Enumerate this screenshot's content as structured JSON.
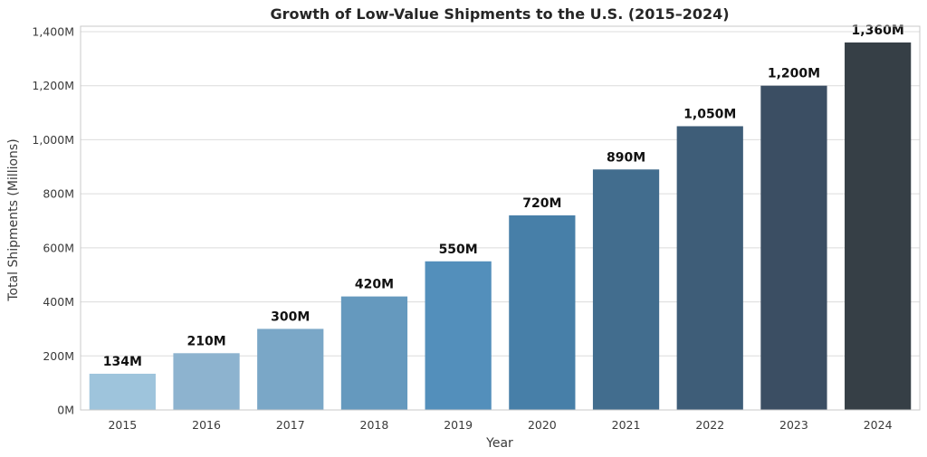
{
  "chart_data": {
    "type": "bar",
    "title": "Growth of Low-Value Shipments to the U.S. (2015–2024)",
    "xlabel": "Year",
    "ylabel": "Total Shipments (Millions)",
    "categories": [
      "2015",
      "2016",
      "2017",
      "2018",
      "2019",
      "2020",
      "2021",
      "2022",
      "2023",
      "2024"
    ],
    "values": [
      134,
      210,
      300,
      420,
      550,
      720,
      890,
      1050,
      1200,
      1360
    ],
    "value_labels": [
      "134M",
      "210M",
      "300M",
      "420M",
      "550M",
      "720M",
      "890M",
      "1,050M",
      "1,200M",
      "1,360M"
    ],
    "ylim": [
      0,
      1420
    ],
    "yticks": [
      0,
      200,
      400,
      600,
      800,
      1000,
      1200,
      1400
    ],
    "ytick_labels": [
      "0M",
      "200M",
      "400M",
      "600M",
      "800M",
      "1,000M",
      "1,200M",
      "1,400M"
    ],
    "grid": true,
    "colors": [
      "#9ec4dc",
      "#8db3cf",
      "#7aa7c7",
      "#6599be",
      "#538fbb",
      "#477fa8",
      "#426d8e",
      "#3e5d78",
      "#3b4e63",
      "#363f46"
    ]
  }
}
